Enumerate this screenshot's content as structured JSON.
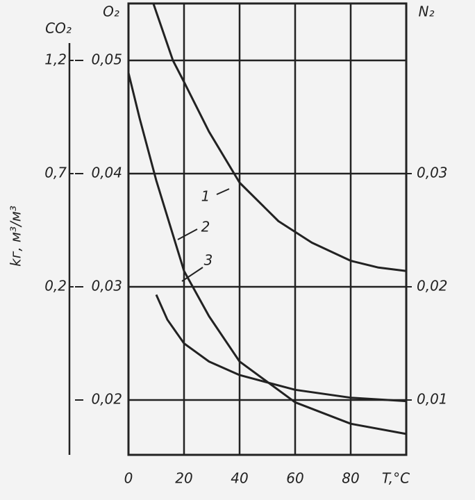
{
  "chart_data": {
    "type": "line",
    "x_label": "T,°C",
    "y_label": "kг, м³/м³",
    "y_axis_name": "O₂",
    "y2_axis_name": "N₂",
    "y3_axis_name": "CO₂",
    "xlim": [
      0,
      100
    ],
    "xticks": [
      0,
      20,
      40,
      60,
      80
    ],
    "ylim": [
      0.015,
      0.055
    ],
    "yticks": [
      {
        "value": 0.02,
        "label": "0,02"
      },
      {
        "value": 0.03,
        "label": "0,03"
      },
      {
        "value": 0.04,
        "label": "0,04"
      },
      {
        "value": 0.05,
        "label": "0,05"
      }
    ],
    "y2lim": [
      0.005,
      0.045
    ],
    "y2ticks": [
      {
        "value": 0.01,
        "label": "0,01"
      },
      {
        "value": 0.02,
        "label": "0,02"
      },
      {
        "value": 0.03,
        "label": "0,03"
      }
    ],
    "y3lim": [
      -0.55,
      1.45
    ],
    "y3ticks": [
      {
        "value": 0.2,
        "label": "0,2"
      },
      {
        "value": 0.7,
        "label": "0,7"
      },
      {
        "value": 1.2,
        "label": "1,2"
      }
    ],
    "grid": true,
    "color": "#222222",
    "series": [
      {
        "name": "1",
        "color": "#222222",
        "x": [
          9,
          16,
          20,
          29,
          40,
          54,
          66,
          80,
          90,
          100
        ],
        "values": [
          0.055,
          0.05,
          0.0481,
          0.0437,
          0.0392,
          0.0358,
          0.0339,
          0.0323,
          0.0317,
          0.0314
        ]
      },
      {
        "name": "2",
        "color": "#222222",
        "x": [
          0,
          4,
          10,
          20,
          29,
          40,
          60,
          80,
          100
        ],
        "values": [
          0.0489,
          0.0449,
          0.0394,
          0.0314,
          0.0274,
          0.0234,
          0.0198,
          0.0179,
          0.017
        ]
      },
      {
        "name": "3",
        "color": "#222222",
        "x": [
          10,
          14,
          20,
          29,
          40,
          60,
          80,
          100
        ],
        "values": [
          0.0293,
          0.0271,
          0.025,
          0.0234,
          0.0222,
          0.0209,
          0.0202,
          0.0199
        ]
      }
    ]
  }
}
